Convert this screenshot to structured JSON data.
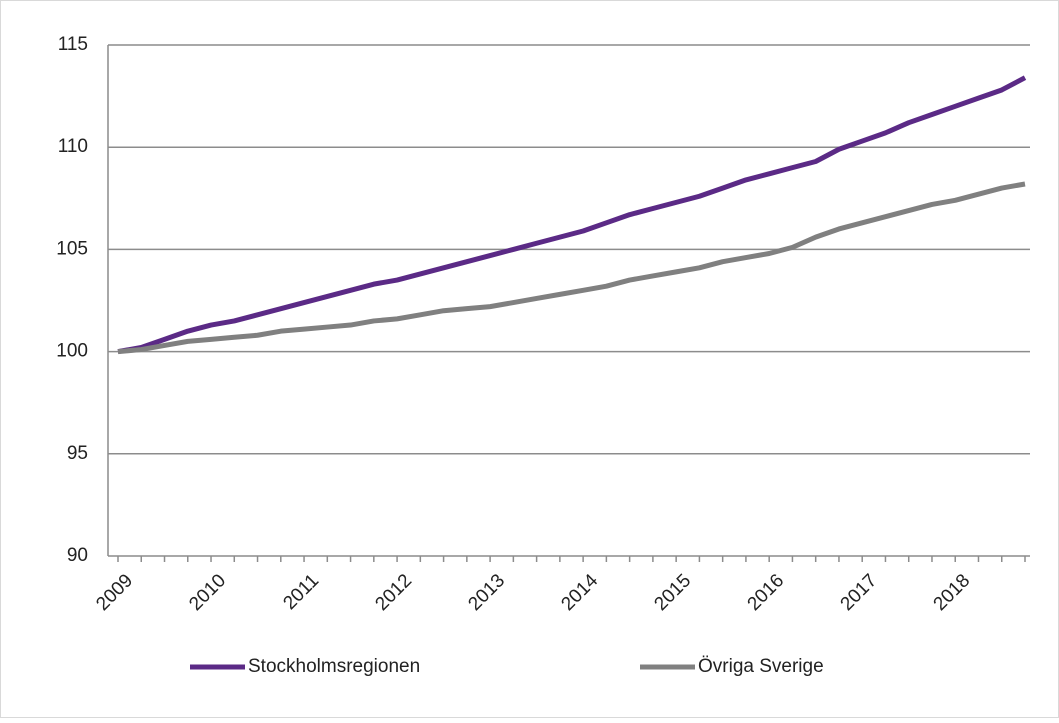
{
  "chart_data": {
    "type": "line",
    "categories": [
      "2009",
      null,
      null,
      null,
      "2010",
      null,
      null,
      null,
      "2011",
      null,
      null,
      null,
      "2012",
      null,
      null,
      null,
      "2013",
      null,
      null,
      null,
      "2014",
      null,
      null,
      null,
      "2015",
      null,
      null,
      null,
      "2016",
      null,
      null,
      null,
      "2017",
      null,
      null,
      null,
      "2018",
      null,
      null,
      null
    ],
    "series": [
      {
        "name": "Stockholmsregionen",
        "color": "#5b2a86",
        "values": [
          100,
          100.2,
          100.6,
          101.0,
          101.3,
          101.5,
          101.8,
          102.1,
          102.4,
          102.7,
          103.0,
          103.3,
          103.5,
          103.8,
          104.1,
          104.4,
          104.7,
          105.0,
          105.3,
          105.6,
          105.9,
          106.3,
          106.7,
          107.0,
          107.3,
          107.6,
          108.0,
          108.4,
          108.7,
          109.0,
          109.3,
          109.9,
          110.3,
          110.7,
          111.2,
          111.6,
          112.0,
          112.4,
          112.8,
          113.4
        ]
      },
      {
        "name": "Övriga Sverige",
        "color": "#808080",
        "values": [
          100,
          100.1,
          100.3,
          100.5,
          100.6,
          100.7,
          100.8,
          101.0,
          101.1,
          101.2,
          101.3,
          101.5,
          101.6,
          101.8,
          102.0,
          102.1,
          102.2,
          102.4,
          102.6,
          102.8,
          103.0,
          103.2,
          103.5,
          103.7,
          103.9,
          104.1,
          104.4,
          104.6,
          104.8,
          105.1,
          105.6,
          106.0,
          106.3,
          106.6,
          106.9,
          107.2,
          107.4,
          107.7,
          108.0,
          108.2
        ]
      }
    ],
    "ylim": [
      90,
      115
    ],
    "yticks": [
      90,
      95,
      100,
      105,
      110,
      115
    ],
    "grid": true,
    "legend": "bottom"
  }
}
